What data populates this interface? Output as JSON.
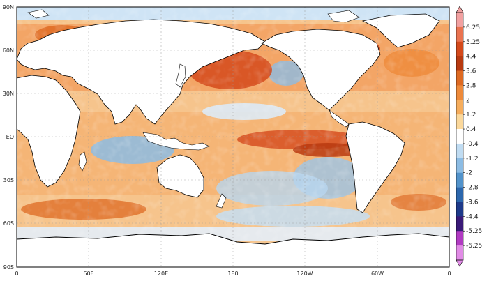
{
  "map": {
    "lat_labels": [
      "90N",
      "60N",
      "30N",
      "EQ",
      "30S",
      "60S",
      "90S"
    ],
    "lon_labels": [
      "0",
      "60E",
      "120E",
      "180",
      "120W",
      "60W",
      "0"
    ],
    "background_ocean": "#f2e2c4",
    "land_color": "#ffffff",
    "coast_color": "#000000"
  },
  "colorbar": {
    "labels": [
      "6.25",
      "5.25",
      "4.4",
      "3.6",
      "2.8",
      "2",
      "1.2",
      "0.4",
      "-0.4",
      "-1.2",
      "-2",
      "-2.8",
      "-3.6",
      "-4.4",
      "-5.25",
      "-6.25"
    ],
    "colors": [
      "#f2a1a1",
      "#ea7350",
      "#d4491b",
      "#b83a10",
      "#de6a22",
      "#ee8a3a",
      "#f6ad5c",
      "#fbd89b",
      "#ffffff",
      "#c0dcf2",
      "#8cbce4",
      "#5293cb",
      "#2c67ad",
      "#1e3a8a",
      "#3a1a78",
      "#b13ac2",
      "#e18be6"
    ]
  }
}
